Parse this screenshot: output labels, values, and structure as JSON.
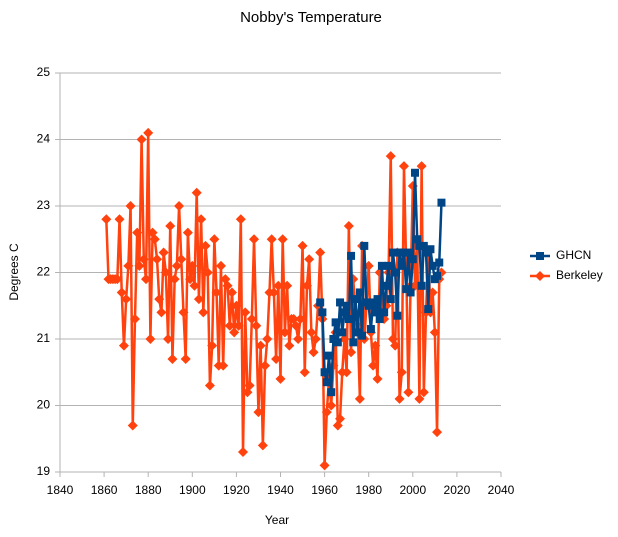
{
  "chart_data": {
    "type": "line",
    "title": "Nobby's Temperature",
    "x_label": "Year",
    "y_label": "Degrees C",
    "xlim": [
      1840,
      2040
    ],
    "xticks": [
      1840,
      1860,
      1880,
      1900,
      1920,
      1940,
      1960,
      1980,
      2000,
      2020,
      2040
    ],
    "ylim": [
      19,
      25
    ],
    "yticks": [
      19,
      20,
      21,
      22,
      23,
      24,
      25
    ],
    "grid": true,
    "legend": "right",
    "series": [
      {
        "name": "GHCN",
        "color": "#004586",
        "marker": "square",
        "x": [
          1958,
          1959,
          1960,
          1961,
          1962,
          1963,
          1964,
          1965,
          1966,
          1967,
          1968,
          1969,
          1970,
          1971,
          1972,
          1973,
          1974,
          1975,
          1976,
          1977,
          1978,
          1979,
          1980,
          1981,
          1982,
          1983,
          1984,
          1985,
          1986,
          1987,
          1988,
          1989,
          1990,
          1991,
          1992,
          1993,
          1994,
          1995,
          1996,
          1997,
          1998,
          1999,
          2000,
          2001,
          2002,
          2003,
          2004,
          2005,
          2006,
          2007,
          2008,
          2009,
          2010,
          2011,
          2012,
          2013
        ],
        "values": [
          21.55,
          21.4,
          20.5,
          20.35,
          20.75,
          20.2,
          21.0,
          21.25,
          20.95,
          21.55,
          21.1,
          21.4,
          21.5,
          21.3,
          22.25,
          20.95,
          21.6,
          21.1,
          21.7,
          21.05,
          22.4,
          21.55,
          21.5,
          21.15,
          21.55,
          21.4,
          21.6,
          21.3,
          22.1,
          21.4,
          21.8,
          22.1,
          21.6,
          22.3,
          22.0,
          21.35,
          22.3,
          22.1,
          22.3,
          21.75,
          22.3,
          21.7,
          22.2,
          23.5,
          22.5,
          22.4,
          21.8,
          22.4,
          22.3,
          21.45,
          22.35,
          22.1,
          21.9,
          21.95,
          22.15,
          23.05
        ]
      },
      {
        "name": "Berkeley",
        "color": "#ff420e",
        "marker": "diamond",
        "x": [
          1861,
          1862,
          1863,
          1864,
          1865,
          1866,
          1867,
          1868,
          1869,
          1870,
          1871,
          1872,
          1873,
          1874,
          1875,
          1876,
          1877,
          1878,
          1879,
          1880,
          1881,
          1882,
          1883,
          1884,
          1885,
          1886,
          1887,
          1888,
          1889,
          1890,
          1891,
          1892,
          1893,
          1894,
          1895,
          1896,
          1897,
          1898,
          1899,
          1900,
          1901,
          1902,
          1903,
          1904,
          1905,
          1906,
          1907,
          1908,
          1909,
          1910,
          1911,
          1912,
          1913,
          1914,
          1915,
          1916,
          1917,
          1918,
          1919,
          1920,
          1921,
          1922,
          1923,
          1924,
          1925,
          1926,
          1927,
          1928,
          1929,
          1930,
          1931,
          1932,
          1933,
          1934,
          1935,
          1936,
          1937,
          1938,
          1939,
          1940,
          1941,
          1942,
          1943,
          1944,
          1945,
          1946,
          1947,
          1948,
          1949,
          1950,
          1951,
          1952,
          1953,
          1954,
          1955,
          1956,
          1957,
          1958,
          1959,
          1960,
          1961,
          1962,
          1963,
          1964,
          1965,
          1966,
          1967,
          1968,
          1969,
          1970,
          1971,
          1972,
          1973,
          1974,
          1975,
          1976,
          1977,
          1978,
          1979,
          1980,
          1981,
          1982,
          1983,
          1984,
          1985,
          1986,
          1987,
          1988,
          1989,
          1990,
          1991,
          1992,
          1993,
          1994,
          1995,
          1996,
          1997,
          1998,
          1999,
          2000,
          2001,
          2002,
          2003,
          2004,
          2005,
          2006,
          2007,
          2008,
          2009,
          2010,
          2011,
          2012,
          2013
        ],
        "values": [
          22.8,
          21.9,
          21.9,
          21.9,
          21.9,
          21.9,
          22.8,
          21.7,
          20.9,
          21.6,
          22.1,
          23.0,
          19.7,
          21.3,
          22.6,
          22.1,
          24.0,
          22.2,
          21.9,
          24.1,
          21.0,
          22.6,
          22.5,
          22.2,
          21.6,
          21.4,
          22.3,
          22.0,
          21.0,
          22.7,
          20.7,
          21.9,
          22.1,
          23.0,
          22.2,
          21.4,
          20.7,
          22.6,
          21.9,
          22.1,
          21.8,
          23.2,
          21.6,
          22.8,
          21.4,
          22.4,
          22.0,
          20.3,
          20.9,
          22.5,
          21.7,
          20.6,
          22.1,
          20.6,
          21.9,
          21.8,
          21.2,
          21.7,
          21.1,
          21.5,
          21.2,
          22.8,
          19.3,
          21.4,
          20.2,
          20.3,
          21.3,
          22.5,
          21.2,
          19.9,
          20.9,
          19.4,
          20.6,
          21.0,
          21.7,
          22.5,
          21.7,
          20.7,
          21.8,
          20.4,
          22.5,
          21.1,
          21.8,
          20.9,
          21.3,
          21.3,
          21.2,
          21.0,
          21.3,
          22.4,
          20.5,
          21.8,
          22.2,
          21.1,
          20.8,
          21.0,
          21.5,
          22.3,
          21.3,
          19.1,
          19.9,
          20.4,
          20.0,
          20.6,
          21.1,
          19.7,
          19.8,
          20.5,
          21.0,
          20.5,
          22.7,
          20.8,
          21.9,
          21.4,
          21.2,
          20.1,
          22.4,
          21.0,
          21.5,
          22.1,
          21.1,
          20.6,
          20.9,
          20.4,
          22.0,
          21.4,
          21.3,
          21.5,
          22.0,
          23.75,
          21.0,
          20.9,
          22.3,
          20.1,
          20.5,
          23.6,
          22.1,
          20.2,
          21.8,
          23.3,
          21.8,
          22.4,
          20.1,
          23.6,
          20.2,
          21.4,
          22.3,
          21.4,
          21.7,
          21.1,
          19.6,
          21.9,
          22.0
        ]
      }
    ]
  }
}
